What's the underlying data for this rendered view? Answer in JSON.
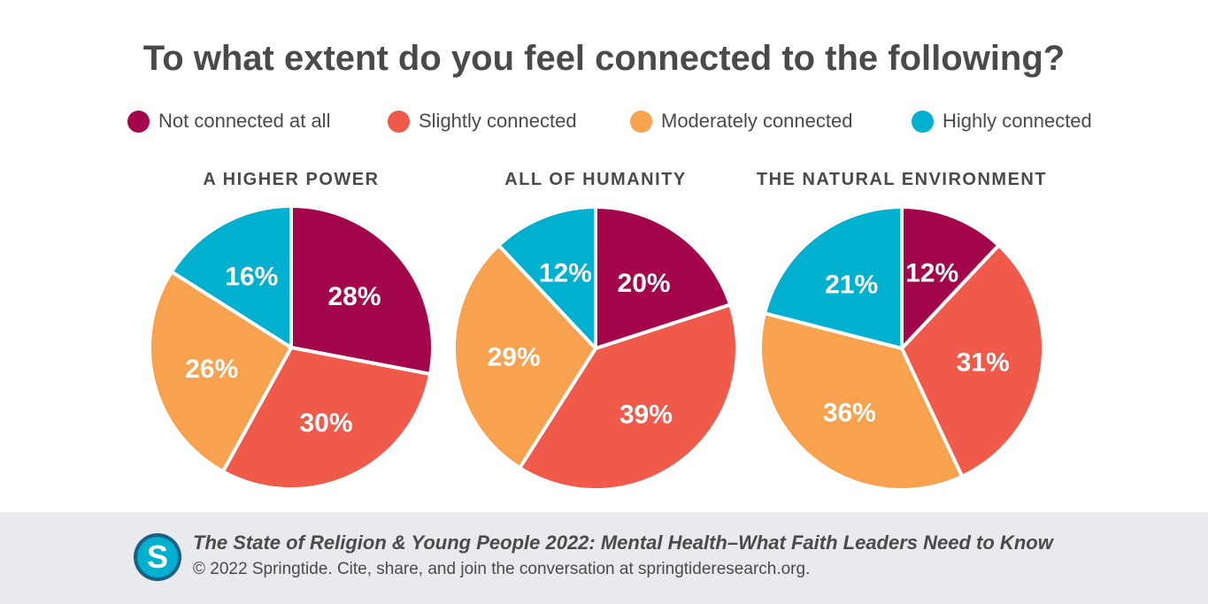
{
  "title": "To what extent do you feel connected to the following?",
  "colors": {
    "Not connected at all": "#a3064a",
    "Slightly connected": "#f05a4a",
    "Moderately connected": "#f8a24f",
    "Highly connected": "#00b0cf"
  },
  "chart_data": [
    {
      "type": "pie",
      "title": "A HIGHER POWER",
      "categories": [
        "Not connected at all",
        "Slightly connected",
        "Moderately connected",
        "Highly connected"
      ],
      "values": [
        28,
        30,
        26,
        16
      ],
      "labels": [
        "28%",
        "30%",
        "26%",
        "16%"
      ]
    },
    {
      "type": "pie",
      "title": "ALL OF HUMANITY",
      "categories": [
        "Not connected at all",
        "Slightly connected",
        "Moderately connected",
        "Highly connected"
      ],
      "values": [
        20,
        39,
        29,
        12
      ],
      "labels": [
        "20%",
        "39%",
        "29%",
        "12%"
      ]
    },
    {
      "type": "pie",
      "title": "THE NATURAL ENVIRONMENT",
      "categories": [
        "Not connected at all",
        "Slightly connected",
        "Moderately connected",
        "Highly connected"
      ],
      "values": [
        12,
        31,
        36,
        21
      ],
      "labels": [
        "12%",
        "31%",
        "36%",
        "21%"
      ]
    }
  ],
  "footer": {
    "logo_letter": "S",
    "publication": "The State of Religion & Young People 2022: Mental Health–What Faith Leaders Need to Know",
    "copyright": "© 2022 Springtide. Cite, share, and join the conversation at springtideresearch.org."
  }
}
